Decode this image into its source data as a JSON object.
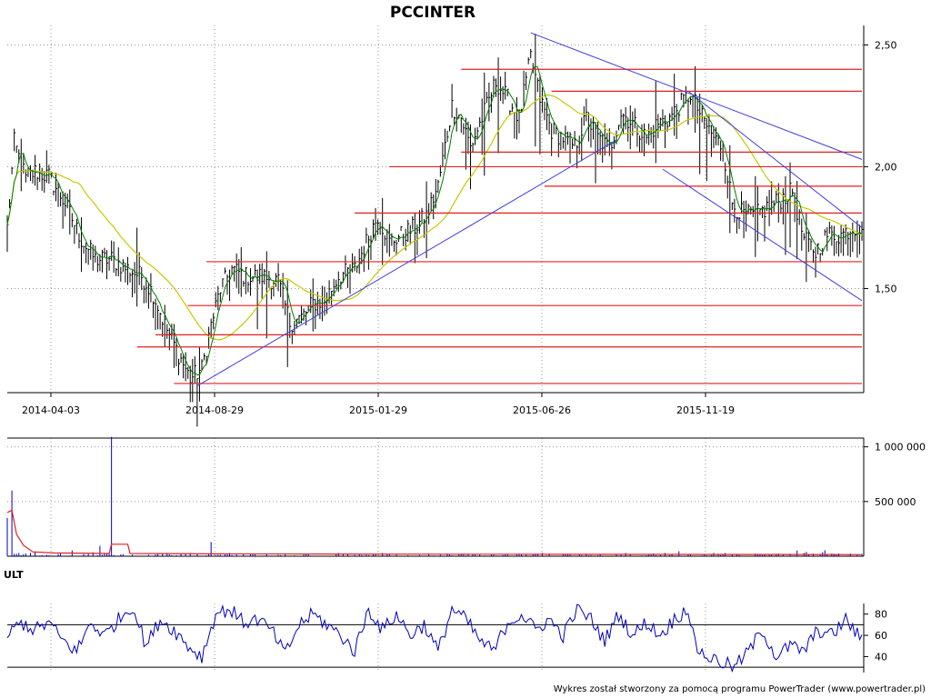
{
  "chart_data": [
    {
      "type": "candlestick",
      "title": "PCCINTER",
      "x_tick_labels": [
        "2014-04-03",
        "2014-08-29",
        "2015-01-29",
        "2015-06-26",
        "2015-11-19"
      ],
      "y_ticks": [
        1.5,
        2.0,
        2.5
      ],
      "y_tick_labels": [
        "1,50",
        "2,00",
        "2,50"
      ],
      "ylim": [
        1.08,
        2.58
      ],
      "grid": true,
      "colors": {
        "price_bars": "#000000",
        "ma_short": "#008000",
        "ma_long": "#c8c800",
        "support_resistance": "#e02020",
        "trendline": "#4040e0"
      },
      "price_path": [
        [
          0,
          1.75
        ],
        [
          3,
          2.1
        ],
        [
          8,
          1.95
        ],
        [
          12,
          1.98
        ],
        [
          18,
          1.96
        ],
        [
          25,
          1.85
        ],
        [
          32,
          1.7
        ],
        [
          38,
          1.62
        ],
        [
          45,
          1.62
        ],
        [
          52,
          1.58
        ],
        [
          58,
          1.55
        ],
        [
          63,
          1.48
        ],
        [
          68,
          1.35
        ],
        [
          73,
          1.25
        ],
        [
          79,
          1.13
        ],
        [
          84,
          1.17
        ],
        [
          88,
          1.35
        ],
        [
          92,
          1.5
        ],
        [
          97,
          1.58
        ],
        [
          103,
          1.55
        ],
        [
          110,
          1.55
        ],
        [
          117,
          1.53
        ],
        [
          122,
          1.36
        ],
        [
          127,
          1.38
        ],
        [
          132,
          1.44
        ],
        [
          137,
          1.45
        ],
        [
          143,
          1.55
        ],
        [
          150,
          1.58
        ],
        [
          155,
          1.69
        ],
        [
          160,
          1.8
        ],
        [
          165,
          1.69
        ],
        [
          170,
          1.72
        ],
        [
          176,
          1.75
        ],
        [
          181,
          1.8
        ],
        [
          186,
          1.92
        ],
        [
          192,
          2.25
        ],
        [
          196,
          2.2
        ],
        [
          200,
          2.08
        ],
        [
          205,
          2.2
        ],
        [
          211,
          2.35
        ],
        [
          216,
          2.28
        ],
        [
          221,
          2.2
        ],
        [
          226,
          2.45
        ],
        [
          230,
          2.28
        ],
        [
          235,
          2.15
        ],
        [
          240,
          2.12
        ],
        [
          245,
          2.08
        ],
        [
          250,
          2.2
        ],
        [
          255,
          2.12
        ],
        [
          260,
          2.07
        ],
        [
          265,
          2.22
        ],
        [
          270,
          2.18
        ],
        [
          276,
          2.12
        ],
        [
          281,
          2.18
        ],
        [
          286,
          2.2
        ],
        [
          291,
          2.26
        ],
        [
          295,
          2.3
        ],
        [
          300,
          2.2
        ],
        [
          305,
          2.12
        ],
        [
          309,
          2.08
        ],
        [
          313,
          1.85
        ],
        [
          318,
          1.8
        ],
        [
          323,
          1.8
        ],
        [
          328,
          1.83
        ],
        [
          333,
          1.86
        ],
        [
          339,
          1.9
        ],
        [
          344,
          1.7
        ],
        [
          349,
          1.65
        ],
        [
          354,
          1.72
        ],
        [
          360,
          1.72
        ],
        [
          365,
          1.75
        ],
        [
          369,
          1.76
        ]
      ],
      "support_resistance_levels": [
        {
          "value": 2.4,
          "from": 196,
          "to": 369
        },
        {
          "value": 2.31,
          "from": 235,
          "to": 369
        },
        {
          "value": 2.06,
          "from": 196,
          "to": 369
        },
        {
          "value": 2.0,
          "from": 165,
          "to": 369
        },
        {
          "value": 1.92,
          "from": 232,
          "to": 369
        },
        {
          "value": 1.81,
          "from": 150,
          "to": 369
        },
        {
          "value": 1.61,
          "from": 86,
          "to": 369
        },
        {
          "value": 1.43,
          "from": 78,
          "to": 369
        },
        {
          "value": 1.31,
          "from": 64,
          "to": 369
        },
        {
          "value": 1.26,
          "from": 56,
          "to": 369
        },
        {
          "value": 1.11,
          "from": 72,
          "to": 369
        }
      ],
      "trendlines": [
        {
          "x1": 82,
          "y1": 1.1,
          "x2": 263,
          "y2": 2.11
        },
        {
          "x1": 226,
          "y1": 2.55,
          "x2": 369,
          "y2": 2.03
        },
        {
          "x1": 294,
          "y1": 2.31,
          "x2": 369,
          "y2": 1.75
        },
        {
          "x1": 283,
          "y1": 1.99,
          "x2": 369,
          "y2": 1.45
        }
      ]
    },
    {
      "type": "bar",
      "title": "",
      "y_ticks": [
        500000,
        1000000
      ],
      "y_tick_labels": [
        "500 000",
        "1 000 000"
      ],
      "ylim": [
        0,
        1080000
      ],
      "spikes": [
        [
          2,
          600000
        ],
        [
          0,
          350000
        ],
        [
          45,
          1090000
        ],
        [
          88,
          130000
        ],
        [
          40,
          95000
        ],
        [
          290,
          45000
        ],
        [
          345,
          40000
        ]
      ],
      "ma_path": [
        [
          0,
          400000
        ],
        [
          2,
          420000
        ],
        [
          4,
          200000
        ],
        [
          7,
          100000
        ],
        [
          11,
          40000
        ],
        [
          20,
          30000
        ],
        [
          44,
          25000
        ],
        [
          45,
          110000
        ],
        [
          52,
          110000
        ],
        [
          53,
          25000
        ],
        [
          90,
          22000
        ],
        [
          200,
          18000
        ],
        [
          369,
          15000
        ]
      ],
      "colors": {
        "bars": "#0000c0",
        "ma": "#e02020"
      }
    },
    {
      "type": "line",
      "title": "ULT",
      "y_ticks": [
        40,
        60,
        80
      ],
      "y_tick_labels": [
        "40",
        "60",
        "80"
      ],
      "ylim": [
        25,
        90
      ],
      "reference_lines": [
        70,
        30
      ],
      "ult_path": [
        [
          0,
          60
        ],
        [
          6,
          72
        ],
        [
          12,
          65
        ],
        [
          18,
          72
        ],
        [
          24,
          55
        ],
        [
          30,
          45
        ],
        [
          36,
          72
        ],
        [
          42,
          60
        ],
        [
          48,
          75
        ],
        [
          54,
          88
        ],
        [
          60,
          50
        ],
        [
          66,
          75
        ],
        [
          72,
          65
        ],
        [
          78,
          50
        ],
        [
          84,
          40
        ],
        [
          90,
          80
        ],
        [
          96,
          85
        ],
        [
          102,
          72
        ],
        [
          108,
          75
        ],
        [
          114,
          65
        ],
        [
          120,
          42
        ],
        [
          126,
          70
        ],
        [
          132,
          80
        ],
        [
          138,
          70
        ],
        [
          144,
          60
        ],
        [
          150,
          45
        ],
        [
          156,
          85
        ],
        [
          162,
          65
        ],
        [
          168,
          80
        ],
        [
          174,
          60
        ],
        [
          180,
          70
        ],
        [
          186,
          45
        ],
        [
          192,
          85
        ],
        [
          198,
          75
        ],
        [
          204,
          55
        ],
        [
          210,
          45
        ],
        [
          216,
          72
        ],
        [
          222,
          80
        ],
        [
          228,
          65
        ],
        [
          234,
          75
        ],
        [
          240,
          60
        ],
        [
          246,
          85
        ],
        [
          252,
          75
        ],
        [
          258,
          55
        ],
        [
          264,
          80
        ],
        [
          270,
          60
        ],
        [
          276,
          72
        ],
        [
          282,
          60
        ],
        [
          288,
          75
        ],
        [
          294,
          86
        ],
        [
          297,
          50
        ],
        [
          302,
          40
        ],
        [
          308,
          35
        ],
        [
          314,
          30
        ],
        [
          320,
          45
        ],
        [
          326,
          65
        ],
        [
          332,
          40
        ],
        [
          338,
          50
        ],
        [
          344,
          45
        ],
        [
          350,
          65
        ],
        [
          356,
          60
        ],
        [
          362,
          75
        ],
        [
          369,
          55
        ]
      ],
      "colors": {
        "line": "#0000c0"
      }
    }
  ],
  "footer_text": "Wykres został stworzony za pomocą programu PowerTrader (www.powertrader.pl)"
}
